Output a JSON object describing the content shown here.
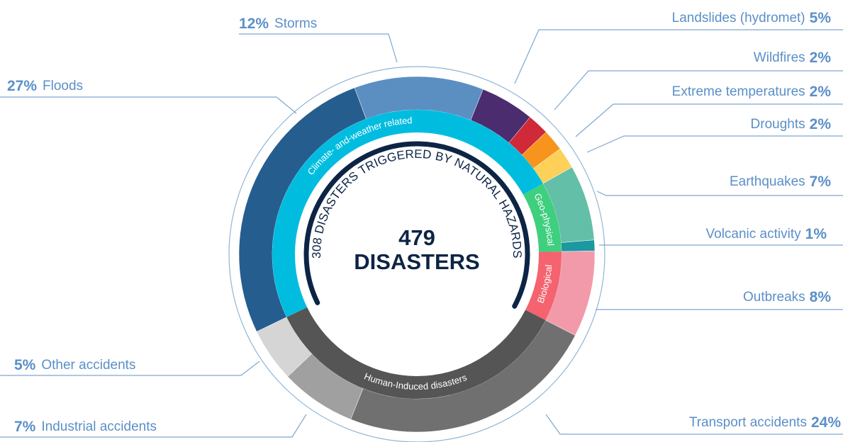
{
  "chart_data": {
    "type": "sunburst",
    "center_value": 479,
    "center_label": "DISASTERS",
    "arc_label": "308 DISASTERS TRIGGERED BY NATURAL HAZARDS",
    "groups": [
      {
        "name": "Climate- and-weather related",
        "color": "#00bde0",
        "children": [
          {
            "name": "Floods",
            "value": 27,
            "value_label": "27%",
            "color": "#255d8f"
          },
          {
            "name": "Storms",
            "value": 12,
            "value_label": "12%",
            "color": "#5b8fc2"
          },
          {
            "name": "Landslides (hydromet)",
            "value": 5,
            "value_label": "5%",
            "color": "#4b2c6e"
          },
          {
            "name": "Wildfires",
            "value": 2,
            "value_label": "2%",
            "color": "#d0293a"
          },
          {
            "name": "Extreme temperatures",
            "value": 2,
            "value_label": "2%",
            "color": "#f7941d"
          },
          {
            "name": "Droughts",
            "value": 2,
            "value_label": "2%",
            "color": "#fdd05a"
          }
        ]
      },
      {
        "name": "Geo-physical",
        "color": "#3ecf7f",
        "children": [
          {
            "name": "Earthquakes",
            "value": 7,
            "value_label": "7%",
            "color": "#63bfa7"
          },
          {
            "name": "Volcanic activity",
            "value": 1,
            "value_label": "1%",
            "color": "#1b98a0"
          }
        ]
      },
      {
        "name": "Biological",
        "color": "#f4636f",
        "children": [
          {
            "name": "Outbreaks",
            "value": 8,
            "value_label": "8%",
            "color": "#f29aaa"
          }
        ]
      },
      {
        "name": "Human-Induced disasters",
        "color": "#555555",
        "children": [
          {
            "name": "Transport accidents",
            "value": 24,
            "value_label": "24%",
            "color": "#707070"
          },
          {
            "name": "Industrial accidents",
            "value": 7,
            "value_label": "7%",
            "color": "#a0a0a0"
          },
          {
            "name": "Other accidents",
            "value": 5,
            "value_label": "5%",
            "color": "#d5d5d5"
          }
        ]
      }
    ]
  }
}
